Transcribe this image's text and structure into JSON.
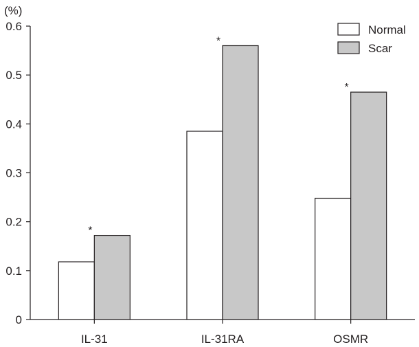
{
  "chart_data": {
    "type": "bar",
    "ylabel": "(%)",
    "ylim": [
      0,
      0.6
    ],
    "yticks": [
      "0",
      "0.1",
      "0.2",
      "0.3",
      "0.4",
      "0.5",
      "0.6"
    ],
    "categories": [
      "IL-31",
      "IL-31RA",
      "OSMR"
    ],
    "series": [
      {
        "name": "Normal",
        "values": [
          0.118,
          0.385,
          0.248
        ],
        "color": "#ffffff"
      },
      {
        "name": "Scar",
        "values": [
          0.172,
          0.56,
          0.465
        ],
        "color": "#c8c8c8"
      }
    ],
    "annotations": [
      {
        "category": "IL-31",
        "series": "Scar",
        "text": "*"
      },
      {
        "category": "IL-31RA",
        "series": "Scar",
        "text": "*"
      },
      {
        "category": "OSMR",
        "series": "Scar",
        "text": "*"
      }
    ],
    "legend_position": "top-right",
    "grid": false,
    "bar_stroke": "#231f20"
  }
}
